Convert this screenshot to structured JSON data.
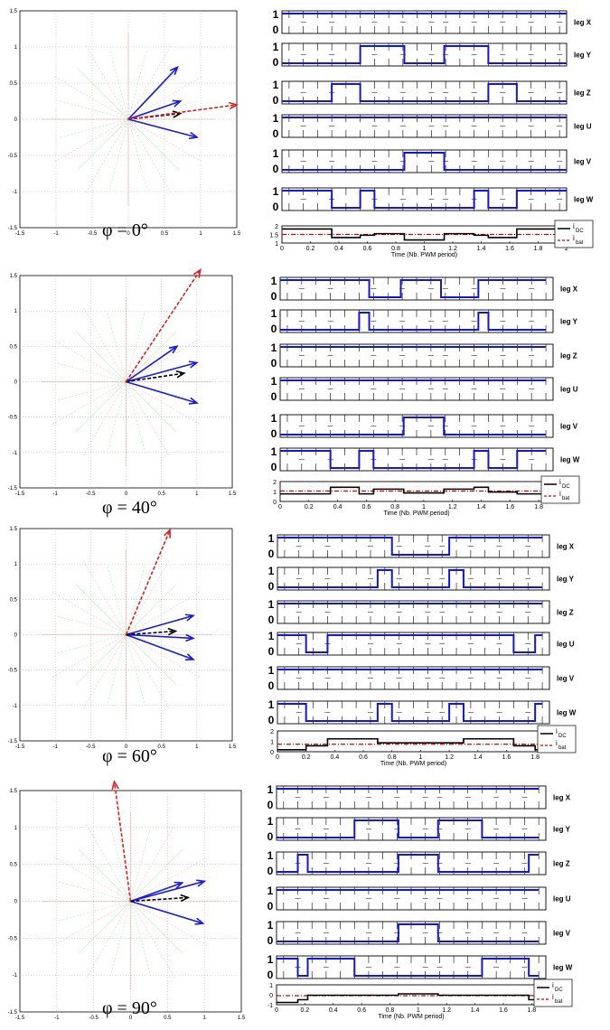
{
  "colors": {
    "pwm": "#1515d6",
    "carrier": "#000000",
    "idc": "#000000",
    "ibat": "#d40000",
    "vector_blue": "#1a1ad8",
    "vector_red": "#e02020",
    "vector_black": "#000000",
    "star_green": "#5cbf5c",
    "star_red": "#e06060",
    "grid": "#aaaaaa"
  },
  "chart_data": [
    {
      "type": "line",
      "panel": "phi_0",
      "caption": "φ = 0°",
      "vector_diagram": {
        "xlim": [
          -1.5,
          1.5
        ],
        "ylim": [
          -1.5,
          1.5
        ],
        "xticks": [
          "-1.5",
          "-1",
          "-0.5",
          "0",
          "0.5",
          "1",
          "1.5"
        ],
        "yticks": [
          "1.5",
          "1",
          "0.5",
          "0",
          "-0.5",
          "-1",
          "-1.5"
        ],
        "vectors": [
          {
            "color": "blue",
            "style": "solid",
            "end": [
              0.68,
              0.72
            ]
          },
          {
            "color": "blue",
            "style": "solid",
            "end": [
              0.72,
              0.25
            ]
          },
          {
            "color": "blue",
            "style": "solid",
            "end": [
              0.95,
              -0.25
            ]
          },
          {
            "color": "black",
            "style": "dashed",
            "end": [
              0.72,
              0.08
            ]
          },
          {
            "color": "red",
            "style": "dashed",
            "end": [
              1.5,
              0.2
            ]
          }
        ]
      },
      "legs": [
        {
          "name": "leg X",
          "x": [
            0,
            2
          ],
          "y": [
            1,
            1
          ]
        },
        {
          "name": "leg Y",
          "x": [
            0,
            0.55,
            0.55,
            0.86,
            0.86,
            1.14,
            1.14,
            1.45,
            1.45,
            2
          ],
          "y": [
            0,
            0,
            1,
            1,
            0,
            0,
            1,
            1,
            0,
            0
          ]
        },
        {
          "name": "leg Z",
          "x": [
            0,
            0.35,
            0.35,
            0.55,
            0.55,
            1.45,
            1.45,
            1.65,
            1.65,
            2
          ],
          "y": [
            0,
            0,
            1,
            1,
            0,
            0,
            1,
            1,
            0,
            0
          ]
        },
        {
          "name": "leg U",
          "x": [
            0,
            2
          ],
          "y": [
            1,
            1
          ]
        },
        {
          "name": "leg V",
          "x": [
            0,
            0.86,
            0.86,
            1.14,
            1.14,
            2
          ],
          "y": [
            0,
            0,
            1,
            1,
            0,
            0
          ]
        },
        {
          "name": "leg W",
          "x": [
            0,
            0.35,
            0.35,
            0.55,
            0.55,
            0.65,
            0.65,
            1.35,
            1.35,
            1.45,
            1.45,
            1.65,
            1.65,
            2
          ],
          "y": [
            1,
            1,
            0,
            0,
            1,
            1,
            0,
            0,
            1,
            1,
            0,
            0,
            1,
            1
          ]
        }
      ],
      "current": {
        "xlim": [
          0,
          2
        ],
        "ylim": [
          1,
          2.1
        ],
        "xticks": [
          "0",
          "0.2",
          "0.4",
          "0.6",
          "0.8",
          "1",
          "1.2",
          "1.4",
          "1.6",
          "1.8",
          "2"
        ],
        "yticks": [
          "2",
          "1.5",
          "1"
        ],
        "xlabel": "Time (Nb. PWM period)",
        "idc": {
          "x": [
            0,
            0.35,
            0.35,
            0.55,
            0.55,
            0.65,
            0.65,
            0.86,
            0.86,
            1.14,
            1.14,
            1.35,
            1.35,
            1.45,
            1.45,
            1.65,
            1.65,
            2
          ],
          "y": [
            1.9,
            1.9,
            1.35,
            1.35,
            1.5,
            1.5,
            1.6,
            1.6,
            1.2,
            1.2,
            1.6,
            1.6,
            1.5,
            1.5,
            1.35,
            1.35,
            1.9,
            1.9
          ]
        },
        "ibat": 1.55
      }
    },
    {
      "type": "line",
      "panel": "phi_40",
      "caption": "φ = 40°",
      "vector_diagram": {
        "xlim": [
          -1.5,
          1.5
        ],
        "ylim": [
          -1.5,
          1.5
        ],
        "xticks": [
          "-1.5",
          "-1",
          "-0.5",
          "0",
          "0.5",
          "1",
          "1.5"
        ],
        "yticks": [
          "1.5",
          "1",
          "0.5",
          "0",
          "-0.5",
          "-1",
          "-1.5"
        ],
        "vectors": [
          {
            "color": "blue",
            "style": "solid",
            "end": [
              0.72,
              0.5
            ]
          },
          {
            "color": "blue",
            "style": "solid",
            "end": [
              1.0,
              0.27
            ]
          },
          {
            "color": "blue",
            "style": "solid",
            "end": [
              1.0,
              -0.3
            ]
          },
          {
            "color": "black",
            "style": "dashed",
            "end": [
              0.82,
              0.12
            ]
          },
          {
            "color": "red",
            "style": "dashed",
            "end": [
              1.05,
              1.58
            ]
          }
        ]
      },
      "legs": [
        {
          "name": "leg X",
          "x": [
            0,
            0.62,
            0.62,
            0.84,
            0.84,
            1.12,
            1.12,
            1.38,
            1.38,
            1.85
          ],
          "y": [
            1,
            1,
            0,
            0,
            1,
            1,
            0,
            0,
            1,
            1
          ]
        },
        {
          "name": "leg Y",
          "x": [
            0,
            0.55,
            0.55,
            0.62,
            0.62,
            1.38,
            1.38,
            1.45,
            1.45,
            1.85
          ],
          "y": [
            0,
            0,
            1,
            1,
            0,
            0,
            1,
            1,
            0,
            0
          ]
        },
        {
          "name": "leg Z",
          "x": [
            0,
            1.85
          ],
          "y": [
            1,
            1
          ]
        },
        {
          "name": "leg U",
          "x": [
            0,
            1.85
          ],
          "y": [
            1,
            1
          ]
        },
        {
          "name": "leg V",
          "x": [
            0,
            0.86,
            0.86,
            1.14,
            1.14,
            1.85
          ],
          "y": [
            0,
            0,
            1,
            1,
            0,
            0
          ]
        },
        {
          "name": "leg W",
          "x": [
            0,
            0.35,
            0.35,
            0.55,
            0.55,
            0.65,
            0.65,
            1.35,
            1.35,
            1.45,
            1.45,
            1.65,
            1.65,
            1.85
          ],
          "y": [
            1,
            1,
            0,
            0,
            1,
            1,
            0,
            0,
            1,
            1,
            0,
            0,
            1,
            1
          ]
        }
      ],
      "current": {
        "xlim": [
          0,
          1.9
        ],
        "ylim": [
          0,
          2.1
        ],
        "xticks": [
          "0",
          "0.2",
          "0.4",
          "0.6",
          "0.8",
          "1",
          "1.2",
          "1.4",
          "1.6",
          "1.8"
        ],
        "yticks": [
          "2",
          "1",
          "0"
        ],
        "xlabel": "Time (Nb. PWM period)",
        "idc": {
          "x": [
            0,
            0.35,
            0.35,
            0.55,
            0.55,
            0.65,
            0.65,
            0.86,
            0.86,
            1.14,
            1.14,
            1.35,
            1.35,
            1.45,
            1.45,
            1.65,
            1.65,
            1.85
          ],
          "y": [
            0.8,
            0.8,
            1.5,
            1.5,
            0.8,
            0.8,
            1.3,
            1.3,
            0.9,
            0.9,
            1.3,
            1.3,
            1.5,
            1.5,
            1.0,
            1.0,
            0.8,
            0.8
          ]
        },
        "ibat": 1.1
      }
    },
    {
      "type": "line",
      "panel": "phi_60",
      "caption": "φ = 60°",
      "vector_diagram": {
        "xlim": [
          -1.5,
          1.5
        ],
        "ylim": [
          -1.5,
          1.5
        ],
        "xticks": [
          "-1.5",
          "-1",
          "-0.5",
          "0",
          "0.5",
          "1",
          "1.5"
        ],
        "yticks": [
          "1.5",
          "1",
          "0.5",
          "0",
          "-0.5",
          "-1",
          "-1.5"
        ],
        "vectors": [
          {
            "color": "blue",
            "style": "solid",
            "end": [
              0.95,
              0.27
            ]
          },
          {
            "color": "blue",
            "style": "solid",
            "end": [
              0.95,
              -0.05
            ]
          },
          {
            "color": "blue",
            "style": "solid",
            "end": [
              0.95,
              -0.35
            ]
          },
          {
            "color": "black",
            "style": "dashed",
            "end": [
              0.7,
              0.05
            ]
          },
          {
            "color": "red",
            "style": "dashed",
            "end": [
              0.62,
              1.48
            ]
          }
        ]
      },
      "legs": [
        {
          "name": "leg X",
          "x": [
            0,
            0.8,
            0.8,
            1.2,
            1.2,
            1.85
          ],
          "y": [
            1,
            1,
            0,
            0,
            1,
            1
          ]
        },
        {
          "name": "leg Y",
          "x": [
            0,
            0.7,
            0.7,
            0.8,
            0.8,
            1.2,
            1.2,
            1.3,
            1.3,
            1.85
          ],
          "y": [
            0,
            0,
            1,
            1,
            0,
            0,
            1,
            1,
            0,
            0
          ]
        },
        {
          "name": "leg Z",
          "x": [
            0,
            1.85
          ],
          "y": [
            1,
            1
          ]
        },
        {
          "name": "leg U",
          "x": [
            0,
            0.2,
            0.2,
            0.35,
            0.35,
            1.65,
            1.65,
            1.8,
            1.8,
            1.85
          ],
          "y": [
            1,
            1,
            0,
            0,
            1,
            1,
            0,
            0,
            1,
            1
          ]
        },
        {
          "name": "leg V",
          "x": [
            0,
            1.85
          ],
          "y": [
            1,
            1
          ]
        },
        {
          "name": "leg W",
          "x": [
            0,
            0.2,
            0.2,
            0.7,
            0.7,
            0.8,
            0.8,
            1.2,
            1.2,
            1.3,
            1.3,
            1.8,
            1.8,
            1.85
          ],
          "y": [
            1,
            1,
            0,
            0,
            1,
            1,
            0,
            0,
            1,
            1,
            0,
            0,
            1,
            1
          ]
        }
      ],
      "current": {
        "xlim": [
          0,
          1.9
        ],
        "ylim": [
          0,
          2.1
        ],
        "xticks": [
          "0",
          "0.2",
          "0.4",
          "0.6",
          "0.8",
          "1",
          "1.2",
          "1.4",
          "1.6",
          "1.8"
        ],
        "yticks": [
          "2",
          "1",
          "0"
        ],
        "xlabel": "Time (Nb. PWM period)",
        "idc": {
          "x": [
            0,
            0.2,
            0.2,
            0.35,
            0.35,
            0.7,
            0.7,
            1.3,
            1.3,
            1.65,
            1.65,
            1.8,
            1.8,
            1.85
          ],
          "y": [
            0.2,
            0.2,
            0.6,
            0.6,
            1.3,
            1.3,
            0.9,
            0.9,
            1.3,
            1.3,
            0.6,
            0.6,
            0.2,
            0.2
          ]
        },
        "ibat": 0.75
      }
    },
    {
      "type": "line",
      "panel": "phi_90",
      "caption": "φ = 90°",
      "vector_diagram": {
        "xlim": [
          -1.5,
          1.5
        ],
        "ylim": [
          -1.5,
          1.5
        ],
        "xticks": [
          "-1.5",
          "-1",
          "-0.5",
          "0",
          "0.5",
          "1",
          "1.5"
        ],
        "yticks": [
          "1.5",
          "1",
          "0.5",
          "0",
          "-0.5",
          "-1",
          "-1.5"
        ],
        "vectors": [
          {
            "color": "blue",
            "style": "solid",
            "end": [
              1.0,
              0.27
            ]
          },
          {
            "color": "blue",
            "style": "solid",
            "end": [
              0.98,
              -0.3
            ]
          },
          {
            "color": "blue",
            "style": "solid",
            "end": [
              0.7,
              0.25
            ]
          },
          {
            "color": "black",
            "style": "dashed",
            "end": [
              0.78,
              0.05
            ]
          },
          {
            "color": "red",
            "style": "dashed",
            "end": [
              -0.22,
              1.62
            ]
          }
        ]
      },
      "legs": [
        {
          "name": "leg X",
          "x": [
            0,
            1.85
          ],
          "y": [
            1,
            1
          ]
        },
        {
          "name": "leg Y",
          "x": [
            0,
            0.55,
            0.55,
            0.86,
            0.86,
            1.14,
            1.14,
            1.45,
            1.45,
            1.85
          ],
          "y": [
            0,
            0,
            1,
            1,
            0,
            0,
            1,
            1,
            0,
            0
          ]
        },
        {
          "name": "leg Z",
          "x": [
            0,
            0.15,
            0.15,
            0.22,
            0.22,
            0.86,
            0.86,
            1.14,
            1.14,
            1.78,
            1.78,
            1.85
          ],
          "y": [
            0,
            0,
            1,
            1,
            0,
            0,
            1,
            1,
            0,
            0,
            1,
            1
          ]
        },
        {
          "name": "leg U",
          "x": [
            0,
            1.85
          ],
          "y": [
            1,
            1
          ]
        },
        {
          "name": "leg V",
          "x": [
            0,
            0.86,
            0.86,
            1.14,
            1.14,
            1.85
          ],
          "y": [
            0,
            0,
            1,
            1,
            0,
            0
          ]
        },
        {
          "name": "leg W",
          "x": [
            0,
            0.15,
            0.15,
            0.22,
            0.22,
            0.55,
            0.55,
            1.45,
            1.45,
            1.78,
            1.78,
            1.85
          ],
          "y": [
            1,
            1,
            0,
            0,
            1,
            1,
            0,
            0,
            1,
            1,
            0,
            0
          ]
        }
      ],
      "current": {
        "xlim": [
          0,
          1.9
        ],
        "ylim": [
          -1,
          1.2
        ],
        "xticks": [
          "0",
          "0.2",
          "0.4",
          "0.6",
          "0.8",
          "1",
          "1.2",
          "1.4",
          "1.6",
          "1.8"
        ],
        "yticks": [
          "1",
          "0",
          "-1"
        ],
        "xlabel": "Time (Nb. PWM period)",
        "idc": {
          "x": [
            0,
            0.15,
            0.15,
            0.22,
            0.22,
            0.86,
            0.86,
            1.14,
            1.14,
            1.78,
            1.78,
            1.85
          ],
          "y": [
            -0.75,
            -0.75,
            -0.45,
            -0.45,
            0.05,
            0.05,
            0.2,
            0.2,
            0.05,
            0.05,
            -0.45,
            -0.45
          ]
        },
        "ibat": 0.0
      }
    }
  ],
  "legend": {
    "idc": "i",
    "idc_sub": "DC",
    "ibat": "i",
    "ibat_sub": "bat"
  },
  "bit_labels": {
    "one": "1",
    "zero": "0"
  }
}
